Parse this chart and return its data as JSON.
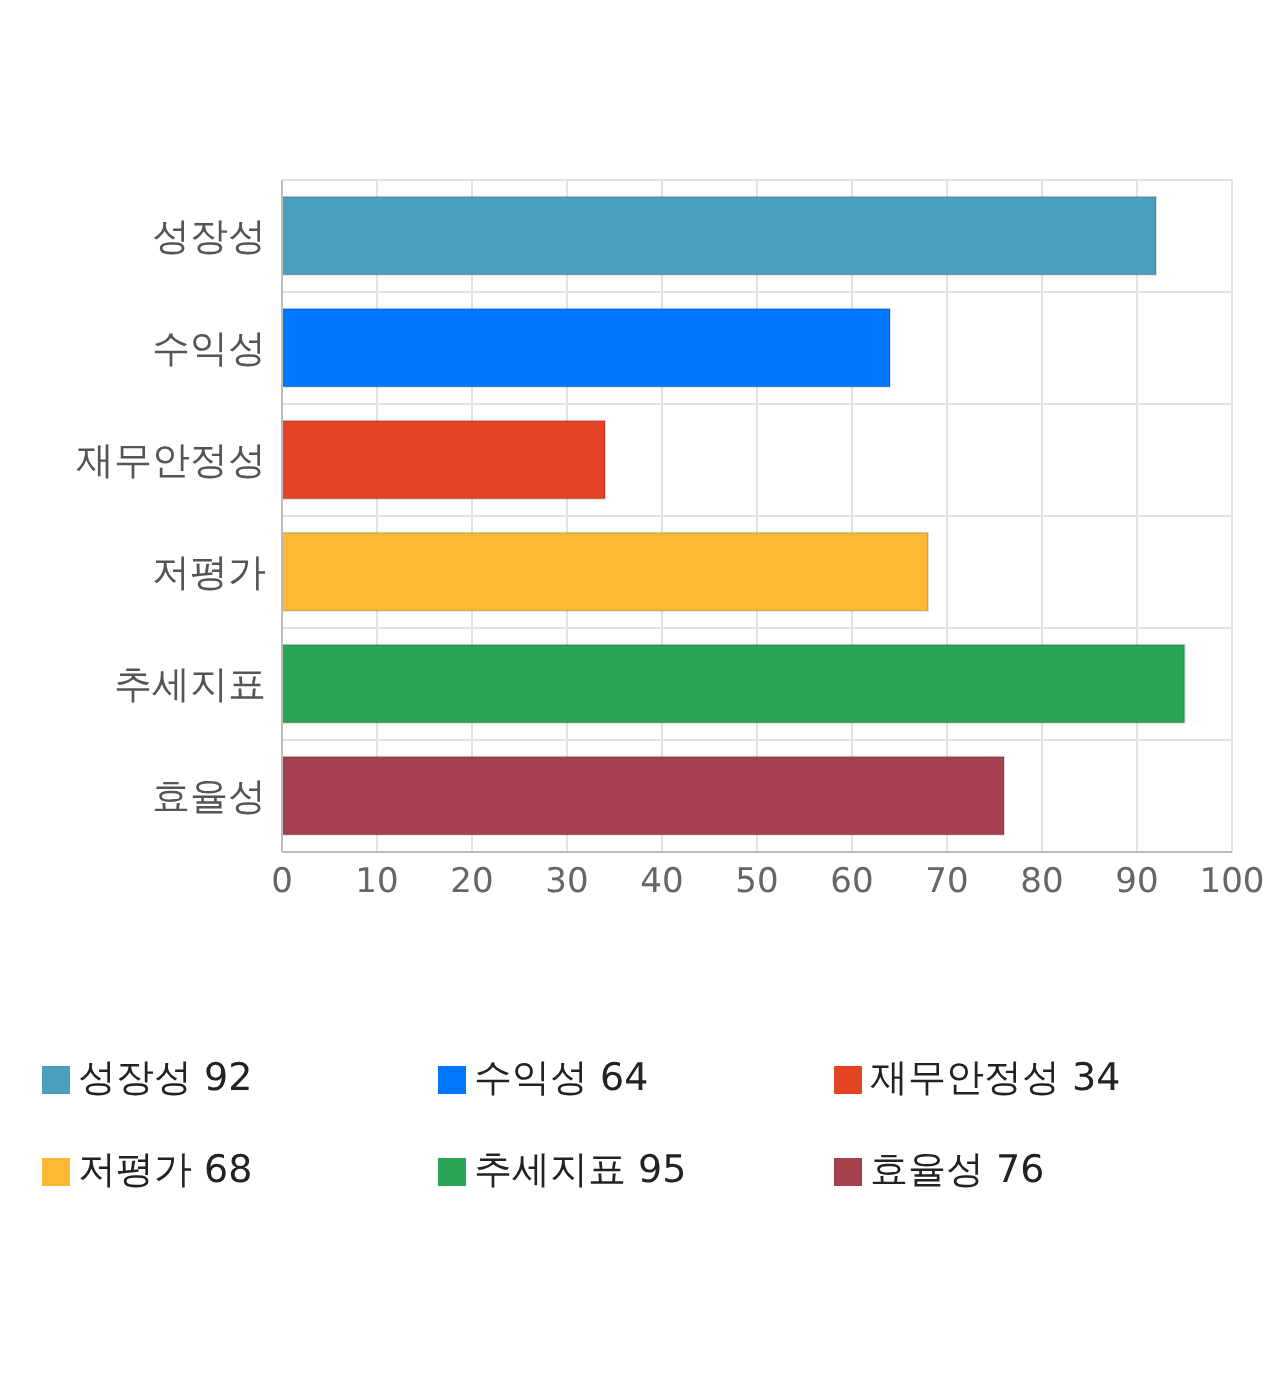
{
  "chart_data": {
    "type": "bar",
    "orientation": "horizontal",
    "stacked": true,
    "categories": [
      "성장성",
      "수익성",
      "재무안정성",
      "저평가",
      "추세지표",
      "효율성"
    ],
    "series": [
      {
        "name": "성장성 92",
        "color": "#4aa0bc",
        "values": [
          92,
          null,
          null,
          null,
          null,
          null
        ]
      },
      {
        "name": "수익성 64",
        "color": "#0077ff",
        "values": [
          null,
          64,
          null,
          null,
          null,
          null
        ]
      },
      {
        "name": "재무안정성 34",
        "color": "#e24425",
        "values": [
          null,
          null,
          34,
          null,
          null,
          null
        ]
      },
      {
        "name": "저평가 68",
        "color": "#fdb933",
        "values": [
          null,
          null,
          null,
          68,
          null,
          null
        ]
      },
      {
        "name": "추세지표 95",
        "color": "#2aa655",
        "values": [
          null,
          null,
          null,
          null,
          95,
          null
        ]
      },
      {
        "name": "효율성 76",
        "color": "#a6404e",
        "values": [
          null,
          null,
          null,
          null,
          null,
          76
        ]
      }
    ],
    "xlim": [
      0,
      100
    ],
    "xticks": [
      0,
      10,
      20,
      30,
      40,
      50,
      60,
      70,
      80,
      90,
      100
    ],
    "grid": true,
    "legend": "bottom"
  }
}
